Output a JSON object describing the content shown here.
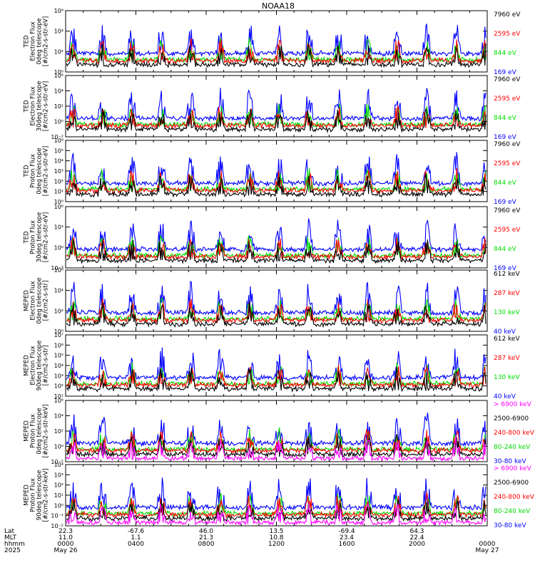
{
  "title": "NOAA18",
  "colors": {
    "blue": "#0000ff",
    "red": "#ff0000",
    "green": "#00dd00",
    "black": "#000000",
    "magenta": "#ff00ff"
  },
  "panels": [
    {
      "ylabel": [
        "TED",
        "Electron Flux",
        "0deg telescope",
        "[#/cm2-s-str-eV]"
      ],
      "ticks": [
        "10⁰",
        "10²",
        "10⁴",
        "10⁶"
      ],
      "tick_exp": [
        0,
        2,
        4,
        6
      ],
      "legend": [
        {
          "text": "7960 eV",
          "color": "black"
        },
        {
          "text": "2595 eV",
          "color": "red"
        },
        {
          "text": "844 eV",
          "color": "green"
        },
        {
          "text": "169 eV",
          "color": "blue"
        }
      ]
    },
    {
      "ylabel": [
        "TED",
        "Electron Flux",
        "30deg telescope",
        "[#/cm2-s-str-eV]"
      ],
      "ticks": [
        "10⁻²",
        "10⁰",
        "10²",
        "10⁴",
        "10⁶"
      ],
      "tick_exp": [
        -2,
        0,
        2,
        4,
        6
      ],
      "legend": [
        {
          "text": "7960 eV",
          "color": "black"
        },
        {
          "text": "2595 eV",
          "color": "red"
        },
        {
          "text": "844 eV",
          "color": "green"
        },
        {
          "text": "169 eV",
          "color": "blue"
        }
      ]
    },
    {
      "ylabel": [
        "TED",
        "Proton Flux",
        "0deg telescope",
        "[#/cm2-s-str-eV]"
      ],
      "ticks": [
        "10⁰",
        "10¹",
        "10²",
        "10³",
        "10⁴",
        "10⁵",
        "10⁶"
      ],
      "tick_exp": [
        0,
        1,
        2,
        3,
        4,
        5,
        6
      ],
      "legend": [
        {
          "text": "7960 eV",
          "color": "black"
        },
        {
          "text": "2595 eV",
          "color": "red"
        },
        {
          "text": "844 eV",
          "color": "green"
        },
        {
          "text": "169 eV",
          "color": "blue"
        }
      ]
    },
    {
      "ylabel": [
        "TED",
        "Proton Flux",
        "30deg telescope",
        "[#/cm2-s-str-eV]"
      ],
      "ticks": [
        "10⁻³",
        "10⁰",
        "10³",
        "10⁶"
      ],
      "tick_exp": [
        -3,
        0,
        3,
        6
      ],
      "legend": [
        {
          "text": "7960 eV",
          "color": "black"
        },
        {
          "text": "2595 eV",
          "color": "red"
        },
        {
          "text": "844 eV",
          "color": "green"
        },
        {
          "text": "169 eV",
          "color": "blue"
        }
      ]
    },
    {
      "ylabel": [
        "MEPED",
        "Electron Flux",
        "0deg telescope",
        "[#/cm2-s-str]"
      ],
      "ticks": [
        "10⁰",
        "10²",
        "10⁴",
        "10⁶"
      ],
      "tick_exp": [
        0,
        2,
        4,
        6
      ],
      "legend": [
        {
          "text": "612 keV",
          "color": "black"
        },
        {
          "text": "287 keV",
          "color": "red"
        },
        {
          "text": "130 keV",
          "color": "green"
        },
        {
          "text": "40 keV",
          "color": "blue"
        }
      ]
    },
    {
      "ylabel": [
        "MEPED",
        "Electron Flux",
        "90deg telescope",
        "[#/cm2-s-str]"
      ],
      "ticks": [
        "10¹",
        "10²",
        "10³",
        "10⁴",
        "10⁵",
        "10⁶",
        "10⁷"
      ],
      "tick_exp": [
        1,
        2,
        3,
        4,
        5,
        6,
        7
      ],
      "legend": [
        {
          "text": "612 keV",
          "color": "black"
        },
        {
          "text": "287 keV",
          "color": "red"
        },
        {
          "text": "130 keV",
          "color": "green"
        },
        {
          "text": "40 keV",
          "color": "blue"
        }
      ]
    },
    {
      "ylabel": [
        "MEPED",
        "Proton Flux",
        "0deg telescope",
        "[#/cm2-s-str-keV]"
      ],
      "ticks": [
        "10⁻²",
        "10⁰",
        "10²",
        "10⁴",
        "10⁶"
      ],
      "tick_exp": [
        -2,
        0,
        2,
        4,
        6
      ],
      "legend": [
        {
          "text": "> 6900 keV",
          "color": "magenta"
        },
        {
          "text": "2500-6900",
          "color": "black"
        },
        {
          "text": "240-800 keV",
          "color": "red"
        },
        {
          "text": "80-240 keV",
          "color": "green"
        },
        {
          "text": "30-80 keV",
          "color": "blue"
        }
      ]
    },
    {
      "ylabel": [
        "MEPED",
        "Proton Flux",
        "90deg telescope",
        "[#/cm2-s-str-keV]"
      ],
      "ticks": [
        "10⁻²",
        "10⁻¹",
        "10⁰",
        "10¹",
        "10²",
        "10³",
        "10⁴"
      ],
      "tick_exp": [
        -2,
        -1,
        0,
        1,
        2,
        3,
        4
      ],
      "legend": [
        {
          "text": "> 6900 keV",
          "color": "magenta"
        },
        {
          "text": "2500-6900",
          "color": "black"
        },
        {
          "text": "240-800 keV",
          "color": "red"
        },
        {
          "text": "80-240 keV",
          "color": "green"
        },
        {
          "text": "30-80 keV",
          "color": "blue"
        }
      ]
    }
  ],
  "xaxis": {
    "row_labels": [
      "Lat",
      "MLT",
      "hhmm",
      "2025"
    ],
    "columns": [
      {
        "lat": "22.3",
        "mlt": "11.0",
        "hhmm": "0000",
        "date": "May 26"
      },
      {
        "lat": "-67.6",
        "mlt": "1.1",
        "hhmm": "0400",
        "date": ""
      },
      {
        "lat": "46.0",
        "mlt": "21.3",
        "hhmm": "0800",
        "date": ""
      },
      {
        "lat": "13.5",
        "mlt": "10.8",
        "hhmm": "1200",
        "date": ""
      },
      {
        "lat": "-69.4",
        "mlt": "23.4",
        "hhmm": "1600",
        "date": ""
      },
      {
        "lat": "64.3",
        "mlt": "22.4",
        "hhmm": "2000",
        "date": ""
      },
      {
        "lat": "",
        "mlt": "",
        "hhmm": "0000",
        "date": "May 27"
      }
    ]
  }
}
